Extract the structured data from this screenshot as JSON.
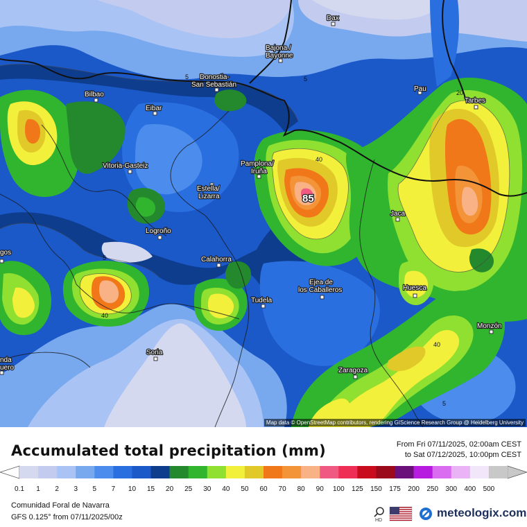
{
  "legend": {
    "title": "Accumulated total precipitation (mm)",
    "date_from": "From Fri 07/11/2025, 02:00am CEST",
    "date_to": "to Sat 07/12/2025, 10:00pm CEST",
    "bins": [
      {
        "label": "0.1",
        "color": "#d5d9ef"
      },
      {
        "label": "1",
        "color": "#c3ccef"
      },
      {
        "label": "2",
        "color": "#a9c3f5"
      },
      {
        "label": "3",
        "color": "#78a9ef"
      },
      {
        "label": "5",
        "color": "#4b8ced"
      },
      {
        "label": "7",
        "color": "#2a6fe0"
      },
      {
        "label": "10",
        "color": "#1b58c8"
      },
      {
        "label": "15",
        "color": "#0e3d8e"
      },
      {
        "label": "20",
        "color": "#23892c"
      },
      {
        "label": "25",
        "color": "#31b52f"
      },
      {
        "label": "30",
        "color": "#8fe030"
      },
      {
        "label": "40",
        "color": "#f2f03a"
      },
      {
        "label": "50",
        "color": "#e2c92a"
      },
      {
        "label": "60",
        "color": "#f07818"
      },
      {
        "label": "70",
        "color": "#f49438"
      },
      {
        "label": "80",
        "color": "#f8b285"
      },
      {
        "label": "90",
        "color": "#f05a82"
      },
      {
        "label": "100",
        "color": "#ee2e55"
      },
      {
        "label": "125",
        "color": "#c80c1e"
      },
      {
        "label": "150",
        "color": "#9a0a1a"
      },
      {
        "label": "175",
        "color": "#6b0f7a"
      },
      {
        "label": "200",
        "color": "#b81be0"
      },
      {
        "label": "250",
        "color": "#d96cf0"
      },
      {
        "label": "300",
        "color": "#eab3f5"
      },
      {
        "label": "400",
        "color": "#f2e6fa"
      },
      {
        "label": "500",
        "color": "#c8c8c8"
      }
    ]
  },
  "map": {
    "attribution": "Map data © OpenStreetMap contributors, rendering GIScience Research Group @ Heidelberg University",
    "peak_value": "85",
    "cities": [
      {
        "name": "Dax"
      },
      {
        "name": "Bajona / Bayonne"
      },
      {
        "name": "Donostia-San Sebastián"
      },
      {
        "name": "Bilbao"
      },
      {
        "name": "Pau"
      },
      {
        "name": "Tarbes"
      },
      {
        "name": "Eibar"
      },
      {
        "name": "Vitoria-Gasteiz"
      },
      {
        "name": "Pamplona/Iruña"
      },
      {
        "name": "Estella/Lizarra"
      },
      {
        "name": "Jaca"
      },
      {
        "name": "Logroño"
      },
      {
        "name": "Calahorra"
      },
      {
        "name": "Ejea de los Caballeros"
      },
      {
        "name": "Huesca"
      },
      {
        "name": "Tudela"
      },
      {
        "name": "Monzón"
      },
      {
        "name": "Soria"
      },
      {
        "name": "Zaragoza"
      },
      {
        "name": "gos"
      },
      {
        "name": "nda"
      },
      {
        "name": "uero"
      }
    ],
    "contour_labels": [
      "5",
      "5",
      "5",
      "20",
      "40",
      "40",
      "40",
      "5"
    ]
  },
  "footer": {
    "region": "Comunidad Foral de Navarra",
    "model": "GFS 0.125° from  07/11/2025/00z",
    "brand": "meteologix.com",
    "hd_label": "HD"
  }
}
